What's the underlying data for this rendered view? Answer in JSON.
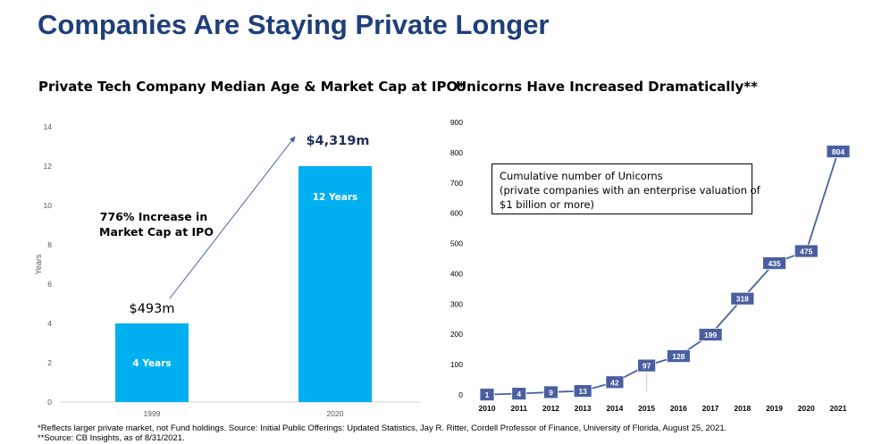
{
  "page": {
    "title": "Companies Are Staying Private Longer",
    "footnotes": [
      "*Reflects larger private market, not Fund holdings. Source: Initial Public Offerings: Updated Statistics, Jay R. Ritter, Cordell Professor of Finance, University of Florida, August 25, 2021.",
      "**Source: CB Insights, as of 8/31/2021."
    ]
  },
  "colors": {
    "title": "#1f3f7a",
    "bar": "#00b0f0",
    "line": "#4a5fa0",
    "marker": "#4a5fa0",
    "axis_text": "#595959"
  },
  "chart_data": [
    {
      "type": "bar",
      "title": "Private Tech Company Median Age & Market Cap at IPO*",
      "categories": [
        "1999",
        "2020"
      ],
      "values": [
        4,
        12
      ],
      "bar_labels": [
        "4 Years",
        "12 Years"
      ],
      "xlabel": "",
      "ylabel": "Years",
      "ylim": [
        0,
        14
      ],
      "yticks": [
        0,
        2,
        4,
        6,
        8,
        10,
        12,
        14
      ],
      "grid": false,
      "annotations": {
        "market_cap_1999": "$493m",
        "market_cap_2020": "$4,319m",
        "increase_line1": "776% Increase in",
        "increase_line2": "Market Cap at IPO"
      }
    },
    {
      "type": "line",
      "title": "Unicorns Have Increased Dramatically**",
      "x": [
        "2010",
        "2011",
        "2012",
        "2013",
        "2014",
        "2015",
        "2016",
        "2017",
        "2018",
        "2019",
        "2020",
        "2021"
      ],
      "values": [
        1,
        4,
        9,
        13,
        42,
        97,
        128,
        199,
        318,
        435,
        475,
        804
      ],
      "xlabel": "",
      "ylabel": "",
      "ylim": [
        0,
        900
      ],
      "yticks": [
        0,
        100,
        200,
        300,
        400,
        500,
        600,
        700,
        800,
        900
      ],
      "grid": false,
      "legend": {
        "line1": "Cumulative number of Unicorns",
        "line2": "(private companies with an enterprise valuation of",
        "line3": "$1 billion or more)"
      }
    }
  ]
}
